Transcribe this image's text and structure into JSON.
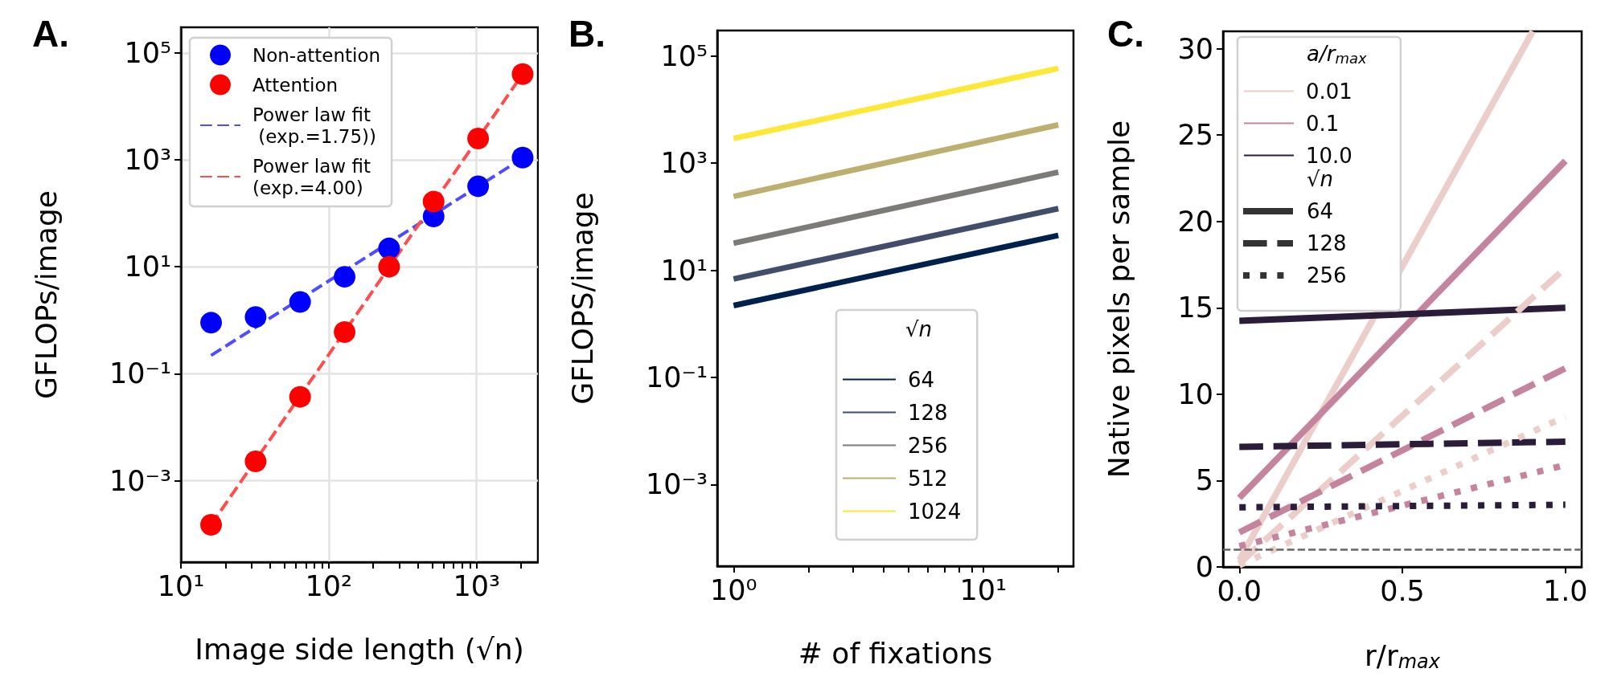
{
  "chart_data": [
    {
      "type": "scatter",
      "title": "A.",
      "xlabel": "Image side length (√n)",
      "ylabel": "GFLOPs/image",
      "log": "xy",
      "grid": true,
      "legend": "top left",
      "marker": "circle",
      "x": [
        16,
        32,
        64,
        128,
        256,
        512,
        1024,
        2048
      ],
      "xlim": [
        10,
        2600
      ],
      "xticks": [
        {
          "value": 10,
          "label": "10¹"
        },
        {
          "value": 20,
          "label": null
        },
        {
          "value": 30,
          "label": null
        },
        {
          "value": 40,
          "label": null
        },
        {
          "value": 50,
          "label": null
        },
        {
          "value": 60,
          "label": null
        },
        {
          "value": 70,
          "label": null
        },
        {
          "value": 80,
          "label": null
        },
        {
          "value": 90,
          "label": null
        },
        {
          "value": 100,
          "label": "10²"
        },
        {
          "value": 200,
          "label": null
        },
        {
          "value": 300,
          "label": null
        },
        {
          "value": 400,
          "label": null
        },
        {
          "value": 500,
          "label": null
        },
        {
          "value": 600,
          "label": null
        },
        {
          "value": 700,
          "label": null
        },
        {
          "value": 800,
          "label": null
        },
        {
          "value": 900,
          "label": null
        },
        {
          "value": 1000,
          "label": "10³"
        },
        {
          "value": 2000,
          "label": null
        }
      ],
      "ylim": [
        3e-05,
        300000
      ],
      "yticks": [
        {
          "value": 0.001,
          "label": "10⁻³"
        },
        {
          "value": 0.1,
          "label": "10⁻¹"
        },
        {
          "value": 10,
          "label": "10¹"
        },
        {
          "value": 1000,
          "label": "10³"
        },
        {
          "value": 100000,
          "label": "10⁵"
        }
      ],
      "series": [
        {
          "name": "Non-attention",
          "color": "#0000ff",
          "values": [
            0.9,
            1.15,
            2.2,
            6.5,
            22,
            87,
            320,
            1100
          ]
        },
        {
          "name": "Attention",
          "color": "#ff0000",
          "values": [
            0.00015,
            0.0023,
            0.037,
            0.6,
            10,
            165,
            2500,
            40000
          ]
        },
        {
          "name": "Power law fit\n (exp.=1.75))",
          "type": "line",
          "marker": "none",
          "line_style": "dashed",
          "color": "#4d4dff",
          "x": [
            16,
            2048
          ],
          "values": [
            0.22,
            1070
          ]
        },
        {
          "name": "Power law fit\n(exp.=4.00)",
          "type": "line",
          "marker": "none",
          "line_style": "dashed",
          "color": "#ff4d4d",
          "x": [
            16,
            2048
          ],
          "values": [
            0.00015,
            40000
          ]
        }
      ]
    },
    {
      "type": "line",
      "title": "B.",
      "xlabel": "# of fixations",
      "ylabel": "GFLOPS/image",
      "log": "xy",
      "grid": false,
      "legend": "bottom",
      "legend_title": "√n",
      "marker": "none",
      "line_style": "solid",
      "x": [
        1,
        20
      ],
      "xlim": [
        0.86,
        23
      ],
      "xticks": [
        {
          "value": 1,
          "label": "10⁰"
        },
        {
          "value": 2,
          "label": null
        },
        {
          "value": 3,
          "label": null
        },
        {
          "value": 4,
          "label": null
        },
        {
          "value": 5,
          "label": null
        },
        {
          "value": 6,
          "label": null
        },
        {
          "value": 7,
          "label": null
        },
        {
          "value": 8,
          "label": null
        },
        {
          "value": 9,
          "label": null
        },
        {
          "value": 10,
          "label": "10¹"
        },
        {
          "value": 20,
          "label": null
        }
      ],
      "ylim": [
        3e-05,
        300000
      ],
      "yticks": [
        {
          "value": 0.001,
          "label": "10⁻³"
        },
        {
          "value": 0.1,
          "label": "10⁻¹"
        },
        {
          "value": 10,
          "label": "10¹"
        },
        {
          "value": 1000,
          "label": "10³"
        },
        {
          "value": 100000,
          "label": "10⁵"
        }
      ],
      "series": [
        {
          "name": "64",
          "color": "#00204d",
          "values": [
            2.2,
            45
          ]
        },
        {
          "name": "128",
          "color": "#414d6b",
          "values": [
            6.9,
            142
          ]
        },
        {
          "name": "256",
          "color": "#7c7b78",
          "values": [
            32,
            680
          ]
        },
        {
          "name": "512",
          "color": "#bcaf6f",
          "values": [
            240,
            5200
          ]
        },
        {
          "name": "1024",
          "color": "#fde737",
          "values": [
            2900,
            59000
          ]
        }
      ]
    },
    {
      "type": "line",
      "title": "C.",
      "xlabel": "r/r$_{max}$",
      "ylabel": "Native pixels per sample",
      "grid": false,
      "legend": "top left",
      "legend_title": "a/r$_{max}$",
      "marker": "none",
      "x": [
        0,
        1
      ],
      "xlim": [
        -0.05,
        1.05
      ],
      "xticks": [
        {
          "value": 0,
          "label": "0.0"
        },
        {
          "value": 0.5,
          "label": "0.5"
        },
        {
          "value": 1,
          "label": "1.0"
        }
      ],
      "ylim": [
        0,
        31
      ],
      "yticks": [
        0,
        5,
        10,
        15,
        20,
        25,
        30
      ],
      "annotations": [
        "√n",
        "64",
        "128",
        "256"
      ],
      "ref_lines": [
        {
          "axis": "y",
          "value": 1,
          "color": "#666666",
          "line_style": "dashed"
        }
      ],
      "series": [
        {
          "name": "0.01",
          "color": "#ebcdc9",
          "line_style": "solid",
          "x": [
            0,
            0.9
          ],
          "values": [
            0.4,
            31
          ]
        },
        {
          "name": "0.1",
          "color": "#c5849d",
          "line_style": "solid",
          "values": [
            4.0,
            23.5
          ]
        },
        {
          "name": "10.0",
          "color": "#2b1d3a",
          "line_style": "solid",
          "values": [
            14.25,
            15.0
          ]
        },
        {
          "color": "#ebcdc9",
          "line_style": "dashed",
          "values": [
            0.2,
            17.3
          ]
        },
        {
          "color": "#c5849d",
          "line_style": "dashed",
          "values": [
            2.0,
            11.5
          ]
        },
        {
          "color": "#2b1d3a",
          "line_style": "dashed",
          "values": [
            6.95,
            7.25
          ]
        },
        {
          "color": "#ebcdc9",
          "line_style": "dotted",
          "values": [
            0.1,
            8.7
          ]
        },
        {
          "color": "#c5849d",
          "line_style": "dotted",
          "values": [
            1.2,
            5.9
          ]
        },
        {
          "color": "#2b1d3a",
          "line_style": "dotted",
          "values": [
            3.45,
            3.6
          ]
        }
      ]
    }
  ]
}
